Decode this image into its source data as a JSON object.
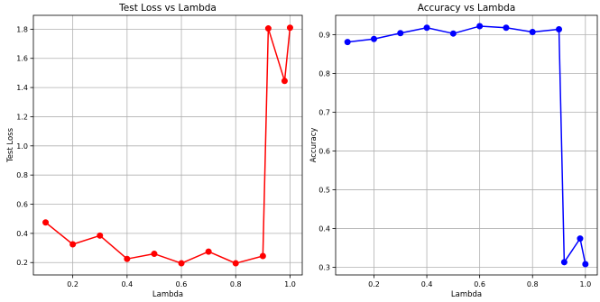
{
  "chart_data": [
    {
      "type": "line",
      "title": "Test Loss vs Lambda",
      "xlabel": "Lambda",
      "ylabel": "Test Loss",
      "color": "#ff0000",
      "x": [
        0.1,
        0.2,
        0.3,
        0.4,
        0.5,
        0.6,
        0.7,
        0.8,
        0.9,
        0.92,
        0.98,
        1.0
      ],
      "values": [
        0.475,
        0.325,
        0.385,
        0.225,
        0.26,
        0.195,
        0.275,
        0.195,
        0.245,
        1.805,
        1.445,
        1.81
      ],
      "xlim": [
        0.055,
        1.045
      ],
      "ylim": [
        0.115,
        1.895
      ],
      "xticks": [
        0.2,
        0.4,
        0.6,
        0.8,
        1.0
      ],
      "xtick_labels": [
        "0.2",
        "0.4",
        "0.6",
        "0.8",
        "1.0"
      ],
      "yticks": [
        0.2,
        0.4,
        0.6,
        0.8,
        1.0,
        1.2,
        1.4,
        1.6,
        1.8
      ],
      "ytick_labels": [
        "0.2",
        "0.4",
        "0.6",
        "0.8",
        "1.0",
        "1.2",
        "1.4",
        "1.6",
        "1.8"
      ],
      "grid": true
    },
    {
      "type": "line",
      "title": "Accuracy vs Lambda",
      "xlabel": "Lambda",
      "ylabel": "Accuracy",
      "color": "#0000ff",
      "x": [
        0.1,
        0.2,
        0.3,
        0.4,
        0.5,
        0.6,
        0.7,
        0.8,
        0.9,
        0.92,
        0.98,
        1.0
      ],
      "values": [
        0.881,
        0.889,
        0.904,
        0.918,
        0.903,
        0.922,
        0.918,
        0.907,
        0.914,
        0.313,
        0.374,
        0.308
      ],
      "xlim": [
        0.055,
        1.045
      ],
      "ylim": [
        0.28,
        0.95
      ],
      "xticks": [
        0.2,
        0.4,
        0.6,
        0.8,
        1.0
      ],
      "xtick_labels": [
        "0.2",
        "0.4",
        "0.6",
        "0.8",
        "1.0"
      ],
      "yticks": [
        0.3,
        0.4,
        0.5,
        0.6,
        0.7,
        0.8,
        0.9
      ],
      "ytick_labels": [
        "0.3",
        "0.4",
        "0.5",
        "0.6",
        "0.7",
        "0.8",
        "0.9"
      ],
      "grid": true
    }
  ]
}
